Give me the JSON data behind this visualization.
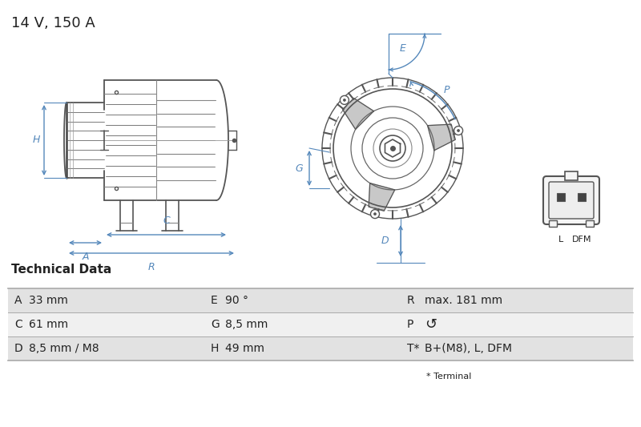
{
  "title": "14 V, 150 A",
  "bg_color": "#ffffff",
  "table_title": "Technical Data",
  "table_row_bg1": "#e2e2e2",
  "table_row_bg2": "#f0f0f0",
  "table_border_color": "#aaaaaa",
  "blue_color": "#5588bb",
  "dark_color": "#222222",
  "line_color": "#555555",
  "rows": [
    [
      "A",
      "33 mm",
      "E",
      "90 °",
      "R",
      "max. 181 mm"
    ],
    [
      "C",
      "61 mm",
      "G",
      "8,5 mm",
      "P",
      "↺"
    ],
    [
      "D",
      "8,5 mm / M8",
      "H",
      "49 mm",
      "T*",
      "B+(M8), L, DFM"
    ]
  ],
  "footnote": "* Terminal"
}
